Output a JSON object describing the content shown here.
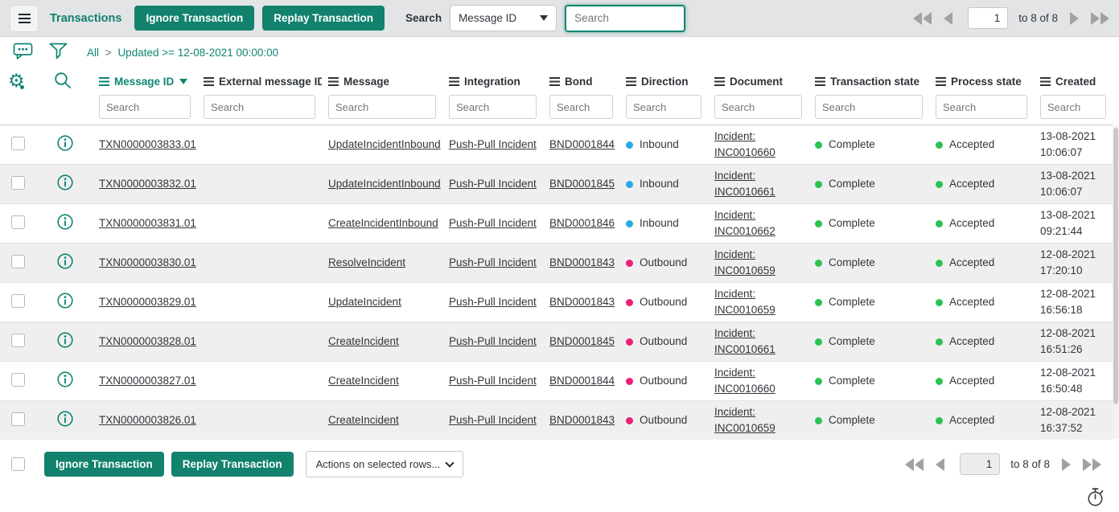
{
  "colors": {
    "accent": "#12826E",
    "accent_text": "#0F8573",
    "inbound": "#29ABE2",
    "outbound": "#ED1E79",
    "ok_green": "#2BC253",
    "link_text": "#31363B"
  },
  "topbar": {
    "title": "Transactions",
    "ignore_button": "Ignore Transaction",
    "replay_button": "Replay Transaction",
    "search_label": "Search",
    "search_field_selected": "Message ID",
    "search_placeholder": "Search",
    "pagination": {
      "page": "1",
      "range": "to 8 of 8"
    }
  },
  "filterbar": {
    "crumb_root": "All",
    "crumb_sep": ">",
    "crumb_condition": "Updated >= 12-08-2021 00:00:00"
  },
  "table": {
    "search_placeholder": "Search",
    "columns": [
      {
        "id": "message_id",
        "label": "Message ID",
        "sorted": true
      },
      {
        "id": "external_message_id",
        "label": "External message ID",
        "sorted": false
      },
      {
        "id": "message",
        "label": "Message",
        "sorted": false
      },
      {
        "id": "integration",
        "label": "Integration",
        "sorted": false
      },
      {
        "id": "bond",
        "label": "Bond",
        "sorted": false
      },
      {
        "id": "direction",
        "label": "Direction",
        "sorted": false
      },
      {
        "id": "document",
        "label": "Document",
        "sorted": false
      },
      {
        "id": "transaction_state",
        "label": "Transaction state",
        "sorted": false
      },
      {
        "id": "process_state",
        "label": "Process state",
        "sorted": false
      },
      {
        "id": "created",
        "label": "Created",
        "sorted": false
      }
    ],
    "rows": [
      {
        "message_id": "TXN0000003833.01",
        "external_message_id": "",
        "message": "UpdateIncidentInbound",
        "integration": "Push-Pull Incident",
        "bond": "BND0001844",
        "direction": "Inbound",
        "document": [
          "Incident:",
          "INC0010660"
        ],
        "transaction_state": "Complete",
        "process_state": "Accepted",
        "created": [
          "13-08-2021",
          "10:06:07"
        ]
      },
      {
        "message_id": "TXN0000003832.01",
        "external_message_id": "",
        "message": "UpdateIncidentInbound",
        "integration": "Push-Pull Incident",
        "bond": "BND0001845",
        "direction": "Inbound",
        "document": [
          "Incident:",
          "INC0010661"
        ],
        "transaction_state": "Complete",
        "process_state": "Accepted",
        "created": [
          "13-08-2021",
          "10:06:07"
        ]
      },
      {
        "message_id": "TXN0000003831.01",
        "external_message_id": "",
        "message": "CreateIncidentInbound",
        "integration": "Push-Pull Incident",
        "bond": "BND0001846",
        "direction": "Inbound",
        "document": [
          "Incident:",
          "INC0010662"
        ],
        "transaction_state": "Complete",
        "process_state": "Accepted",
        "created": [
          "13-08-2021",
          "09:21:44"
        ]
      },
      {
        "message_id": "TXN0000003830.01",
        "external_message_id": "",
        "message": "ResolveIncident",
        "integration": "Push-Pull Incident",
        "bond": "BND0001843",
        "direction": "Outbound",
        "document": [
          "Incident:",
          "INC0010659"
        ],
        "transaction_state": "Complete",
        "process_state": "Accepted",
        "created": [
          "12-08-2021",
          "17:20:10"
        ]
      },
      {
        "message_id": "TXN0000003829.01",
        "external_message_id": "",
        "message": "UpdateIncident",
        "integration": "Push-Pull Incident",
        "bond": "BND0001843",
        "direction": "Outbound",
        "document": [
          "Incident:",
          "INC0010659"
        ],
        "transaction_state": "Complete",
        "process_state": "Accepted",
        "created": [
          "12-08-2021",
          "16:56:18"
        ]
      },
      {
        "message_id": "TXN0000003828.01",
        "external_message_id": "",
        "message": "CreateIncident",
        "integration": "Push-Pull Incident",
        "bond": "BND0001845",
        "direction": "Outbound",
        "document": [
          "Incident:",
          "INC0010661"
        ],
        "transaction_state": "Complete",
        "process_state": "Accepted",
        "created": [
          "12-08-2021",
          "16:51:26"
        ]
      },
      {
        "message_id": "TXN0000003827.01",
        "external_message_id": "",
        "message": "CreateIncident",
        "integration": "Push-Pull Incident",
        "bond": "BND0001844",
        "direction": "Outbound",
        "document": [
          "Incident:",
          "INC0010660"
        ],
        "transaction_state": "Complete",
        "process_state": "Accepted",
        "created": [
          "12-08-2021",
          "16:50:48"
        ]
      },
      {
        "message_id": "TXN0000003826.01",
        "external_message_id": "",
        "message": "CreateIncident",
        "integration": "Push-Pull Incident",
        "bond": "BND0001843",
        "direction": "Outbound",
        "document": [
          "Incident:",
          "INC0010659"
        ],
        "transaction_state": "Complete",
        "process_state": "Accepted",
        "created": [
          "12-08-2021",
          "16:37:52"
        ]
      }
    ]
  },
  "footer": {
    "ignore_button": "Ignore Transaction",
    "replay_button": "Replay Transaction",
    "actions_label": "Actions on selected rows...",
    "pagination": {
      "page": "1",
      "range": "to 8 of 8"
    }
  }
}
